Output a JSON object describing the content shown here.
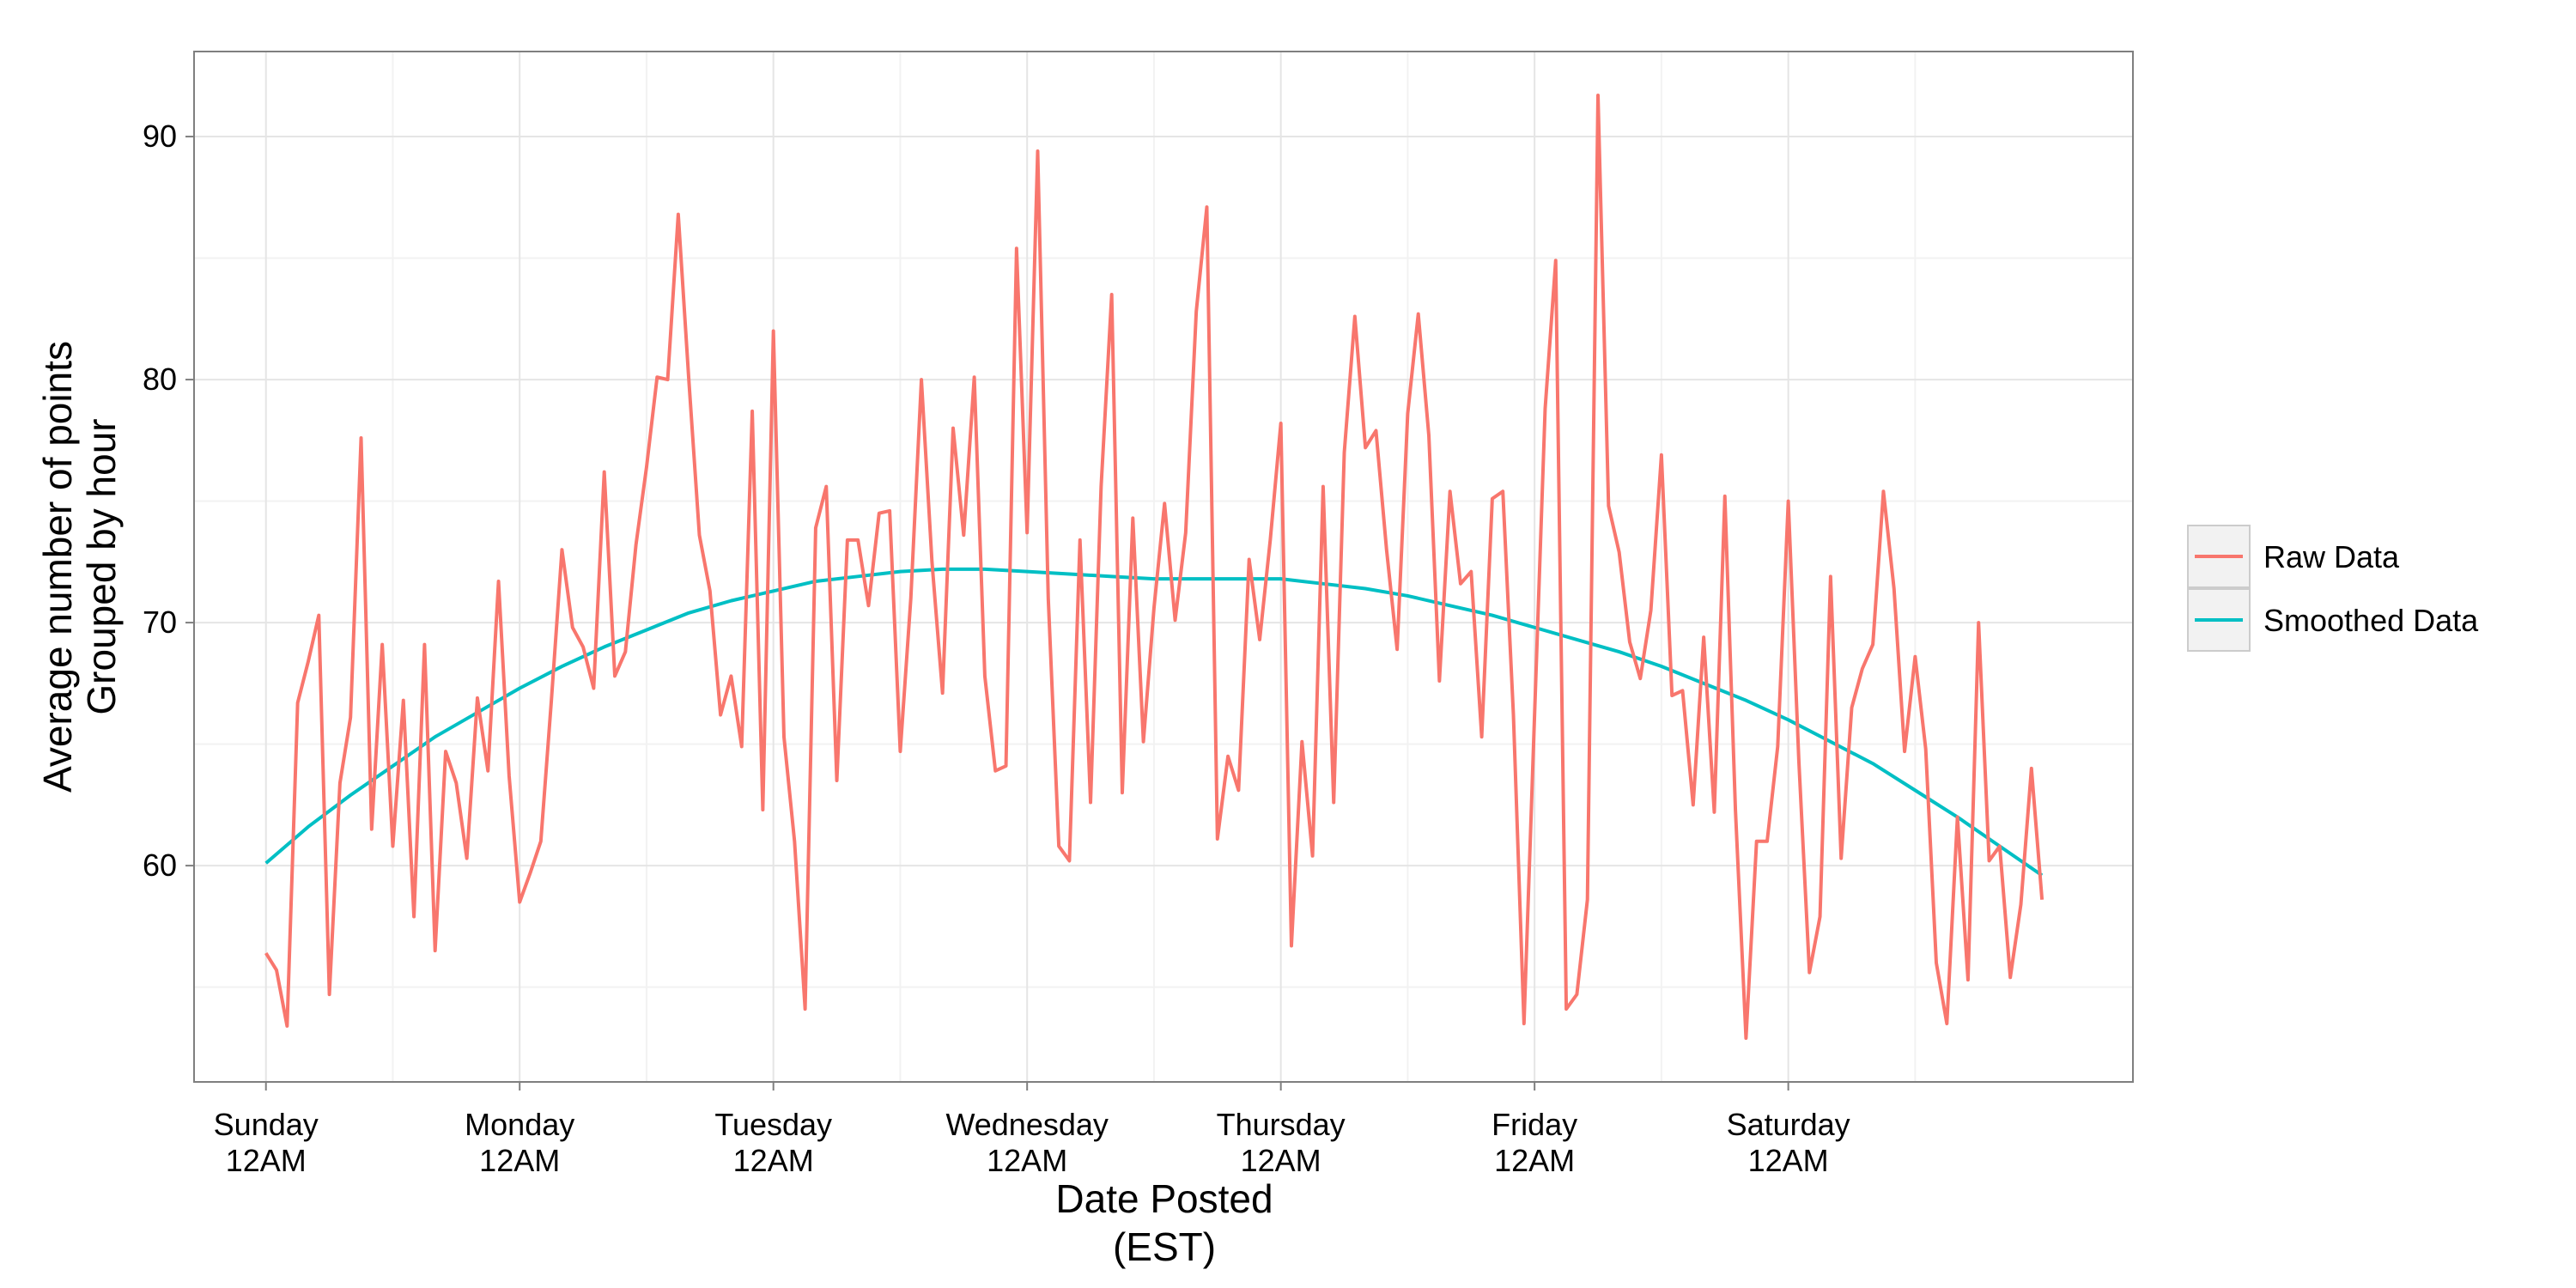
{
  "chart_data": {
    "type": "line",
    "title": "",
    "xlabel": [
      "Date Posted",
      "(EST)"
    ],
    "ylabel": [
      "Average number of points",
      "Grouped by hour"
    ],
    "x_unit": "hours since Sunday 12AM (EST)",
    "xlim": [
      -6.8,
      176.6
    ],
    "ylim": [
      51.1,
      93.5
    ],
    "x_ticks": [
      {
        "x": 0,
        "label": [
          "Sunday",
          "12AM"
        ]
      },
      {
        "x": 24,
        "label": [
          "Monday",
          "12AM"
        ]
      },
      {
        "x": 48,
        "label": [
          "Tuesday",
          "12AM"
        ]
      },
      {
        "x": 72,
        "label": [
          "Wednesday",
          "12AM"
        ]
      },
      {
        "x": 96,
        "label": [
          "Thursday",
          "12AM"
        ]
      },
      {
        "x": 120,
        "label": [
          "Friday",
          "12AM"
        ]
      },
      {
        "x": 144,
        "label": [
          "Saturday",
          "12AM"
        ]
      }
    ],
    "y_ticks": [
      60,
      70,
      80,
      90
    ],
    "grid": true,
    "legend": {
      "position": "right",
      "entries": [
        "Raw Data",
        "Smoothed Data"
      ]
    },
    "colors": {
      "raw": "#F8766D",
      "smoothed": "#00BFC4",
      "grid_major": "#E5E5E5",
      "grid_minor": "#F2F2F2",
      "border": "#7F7F7F"
    },
    "series": [
      {
        "name": "Raw Data",
        "color": "#F8766D",
        "values": [
          56.4,
          55.7,
          53.4,
          66.7,
          68.4,
          70.3,
          54.7,
          63.4,
          66.1,
          77.6,
          61.5,
          69.1,
          60.8,
          66.8,
          57.9,
          69.1,
          56.5,
          64.7,
          63.4,
          60.3,
          66.9,
          63.9,
          71.7,
          63.7,
          58.5,
          59.7,
          61.0,
          66.8,
          73.0,
          69.8,
          69.0,
          67.3,
          76.2,
          67.8,
          68.8,
          73.2,
          76.4,
          80.1,
          80.0,
          86.8,
          80.0,
          73.6,
          71.3,
          66.2,
          67.8,
          64.9,
          78.7,
          62.3,
          82.0,
          65.3,
          61.0,
          54.1,
          73.9,
          75.6,
          63.5,
          73.4,
          73.4,
          70.7,
          74.5,
          74.6,
          64.7,
          71.0,
          80.0,
          72.5,
          67.1,
          78.0,
          73.6,
          80.1,
          67.8,
          63.9,
          64.1,
          85.4,
          73.7,
          89.4,
          71.0,
          60.8,
          60.2,
          73.4,
          62.6,
          75.6,
          83.5,
          63.0,
          74.3,
          65.1,
          70.6,
          74.9,
          70.1,
          73.7,
          82.8,
          87.1,
          61.1,
          64.5,
          63.1,
          72.6,
          69.3,
          73.4,
          78.2,
          56.7,
          65.1,
          60.4,
          75.6,
          62.6,
          77.0,
          82.6,
          77.2,
          77.9,
          73.0,
          68.9,
          78.6,
          82.7,
          77.7,
          67.6,
          75.4,
          71.6,
          72.1,
          65.3,
          75.1,
          75.4,
          66.2,
          53.5,
          66.2,
          78.8,
          84.9,
          54.1,
          54.7,
          58.6,
          91.7,
          74.8,
          72.9,
          69.2,
          67.7,
          70.5,
          76.9,
          67.0,
          67.2,
          62.5,
          69.4,
          62.2,
          75.2,
          62.3,
          52.9,
          61.0,
          61.0,
          64.9,
          75.0,
          64.3,
          55.6,
          57.9,
          71.9,
          60.3,
          66.5,
          68.1,
          69.1,
          75.4,
          71.4,
          64.7,
          68.6,
          64.8,
          56.0,
          53.5,
          62.0,
          55.3,
          70.0,
          60.2,
          60.8,
          55.4,
          58.4,
          64.0,
          58.6
        ]
      },
      {
        "name": "Smoothed Data",
        "color": "#00BFC4",
        "x": [
          0,
          4,
          8,
          12,
          16,
          20,
          24,
          28,
          32,
          36,
          40,
          44,
          48,
          52,
          56,
          60,
          64,
          68,
          72,
          76,
          80,
          84,
          88,
          92,
          96,
          100,
          104,
          108,
          112,
          116,
          120,
          124,
          128,
          132,
          136,
          140,
          144,
          148,
          152,
          156,
          160,
          164,
          168
        ],
        "values": [
          60.1,
          61.6,
          62.9,
          64.1,
          65.3,
          66.3,
          67.3,
          68.2,
          69.0,
          69.7,
          70.4,
          70.9,
          71.3,
          71.7,
          71.9,
          72.1,
          72.2,
          72.2,
          72.1,
          72.0,
          71.9,
          71.8,
          71.8,
          71.8,
          71.8,
          71.6,
          71.4,
          71.1,
          70.7,
          70.3,
          69.8,
          69.3,
          68.8,
          68.2,
          67.5,
          66.8,
          66.0,
          65.1,
          64.2,
          63.1,
          62.0,
          60.8,
          59.6
        ]
      }
    ]
  }
}
